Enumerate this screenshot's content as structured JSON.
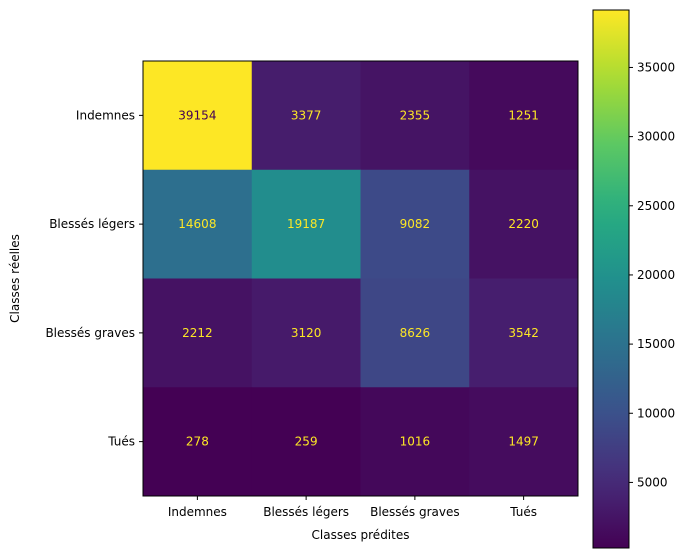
{
  "chart_data": {
    "type": "heatmap",
    "title": "",
    "xlabel": "Classes prédites",
    "ylabel": "Classes réelles",
    "x_categories": [
      "Indemnes",
      "Blessés légers",
      "Blessés graves",
      "Tués"
    ],
    "y_categories": [
      "Indemnes",
      "Blessés légers",
      "Blessés graves",
      "Tués"
    ],
    "values": [
      [
        39154,
        3377,
        2355,
        1251
      ],
      [
        14608,
        19187,
        9082,
        2220
      ],
      [
        2212,
        3120,
        8626,
        3542
      ],
      [
        278,
        259,
        1016,
        1497
      ]
    ],
    "colormap": "viridis",
    "vmin": 259,
    "vmax": 39154,
    "colorbar_ticks": [
      5000,
      10000,
      15000,
      20000,
      25000,
      30000,
      35000
    ],
    "colorbar_tick_labels": [
      "5000",
      "10000",
      "15000",
      "20000",
      "25000",
      "30000",
      "35000"
    ],
    "grid": false,
    "text_color_low": "#fde725",
    "text_color_high": "#440154"
  }
}
